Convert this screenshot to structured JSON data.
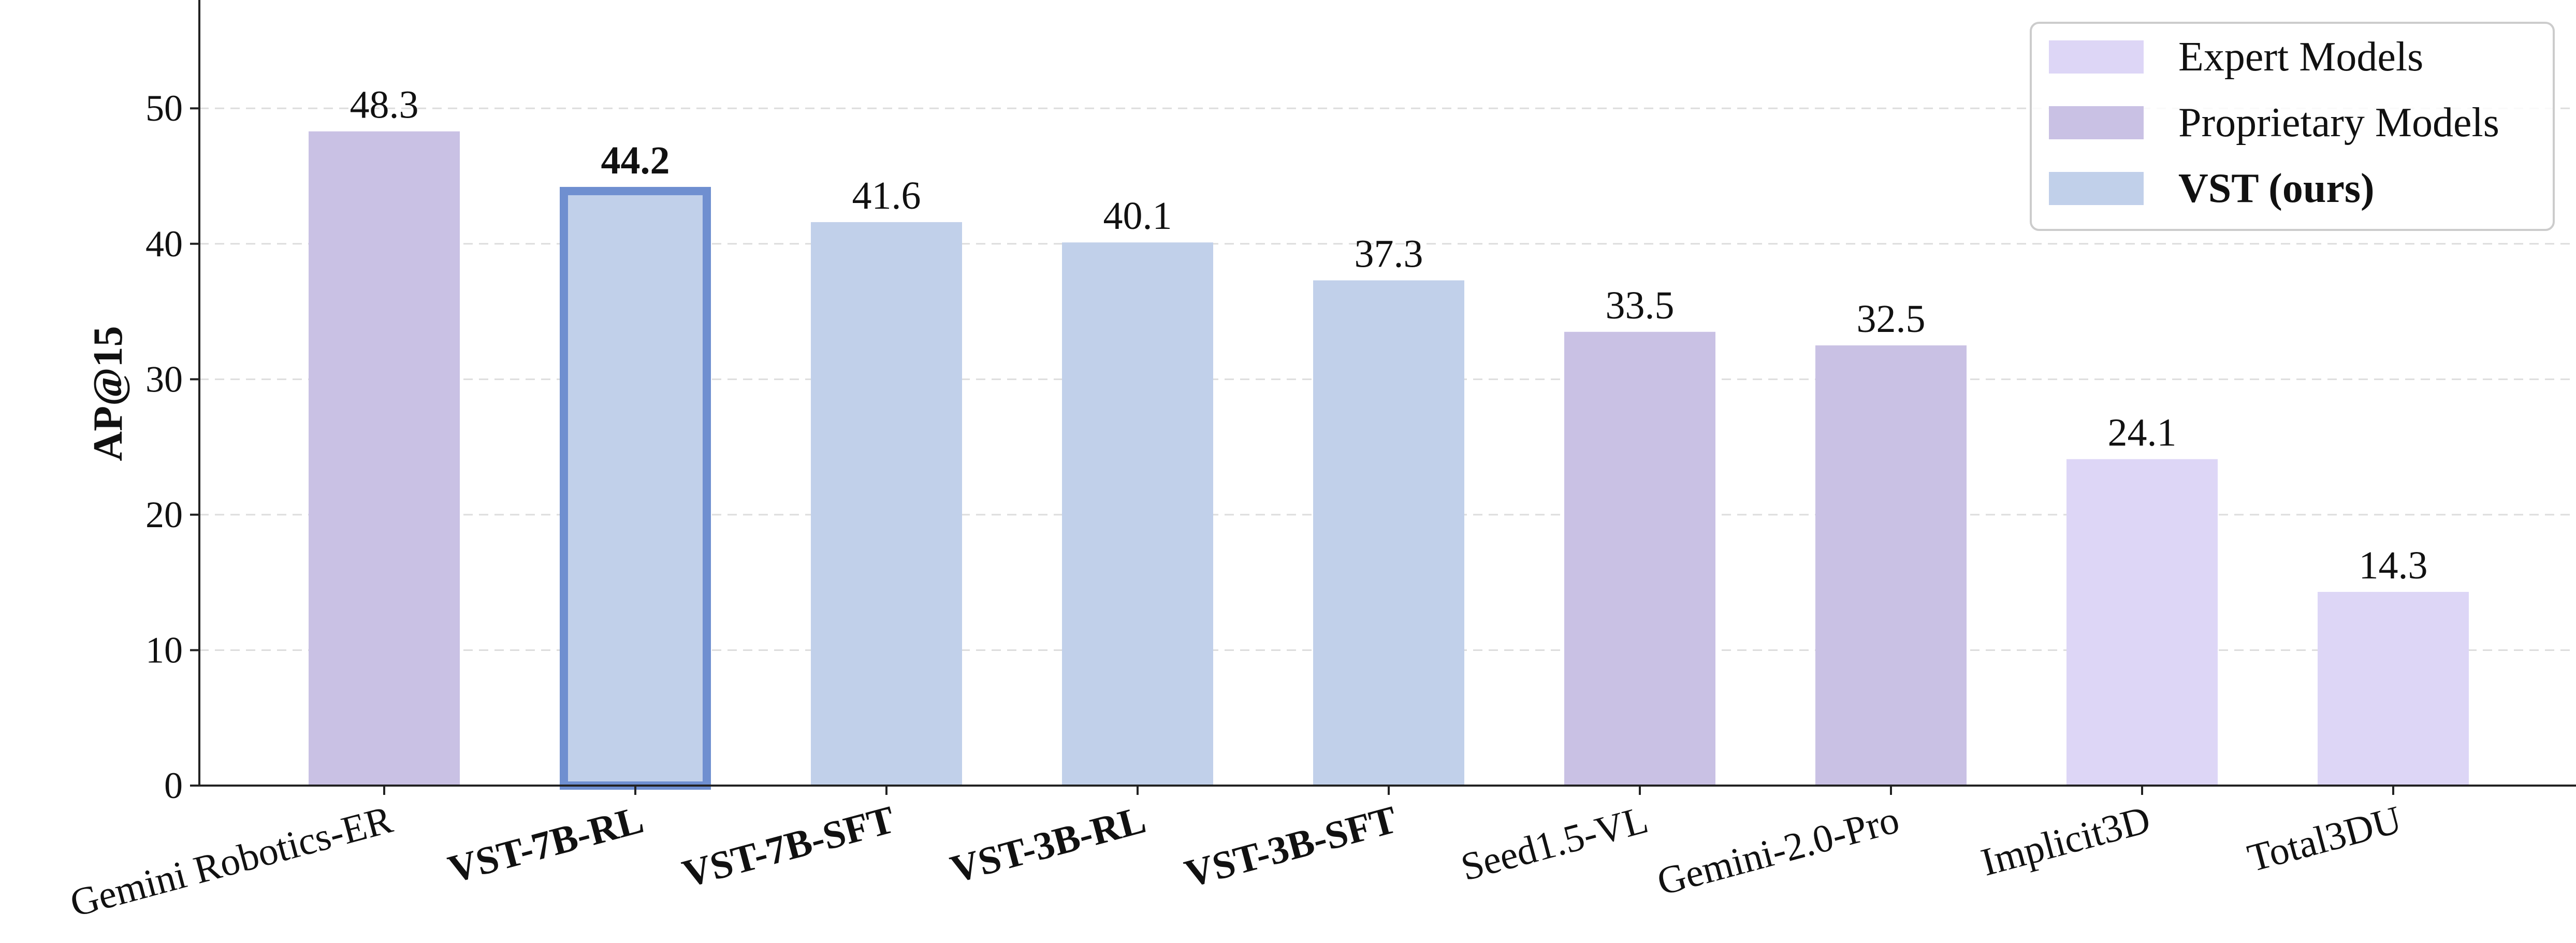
{
  "chart_data": {
    "type": "bar",
    "title": "",
    "xlabel": "",
    "ylabel": "AP@15",
    "ylim": [
      0,
      58
    ],
    "yticks": [
      0,
      10,
      20,
      30,
      40,
      50
    ],
    "grid": true,
    "legend_position": "top-right",
    "categories": [
      "Gemini Robotics-ER",
      "VST-7B-RL",
      "VST-7B-SFT",
      "VST-3B-RL",
      "VST-3B-SFT",
      "Seed1.5-VL",
      "Gemini-2.0-Pro",
      "Implicit3D",
      "Total3DU"
    ],
    "values": [
      48.3,
      44.2,
      41.6,
      40.1,
      37.3,
      33.5,
      32.5,
      24.1,
      14.3
    ],
    "value_labels": [
      "48.3",
      "44.2",
      "41.6",
      "40.1",
      "37.3",
      "33.5",
      "32.5",
      "24.1",
      "14.3"
    ],
    "groups": [
      "Proprietary Models",
      "VST (ours)",
      "VST (ours)",
      "VST (ours)",
      "VST (ours)",
      "Proprietary Models",
      "Proprietary Models",
      "Expert Models",
      "Expert Models"
    ],
    "bold_categories": [
      "VST-7B-RL",
      "VST-7B-SFT",
      "VST-3B-RL",
      "VST-3B-SFT"
    ],
    "highlighted_category": "VST-7B-RL",
    "legend": [
      {
        "label": "Expert Models",
        "color": "#ddd6f6",
        "bold": false
      },
      {
        "label": "Proprietary Models",
        "color": "#c9c1e4",
        "bold": false
      },
      {
        "label": "VST (ours)",
        "color": "#c1d0ea",
        "bold": true
      }
    ],
    "highlight_color": "#6f8fd0"
  }
}
